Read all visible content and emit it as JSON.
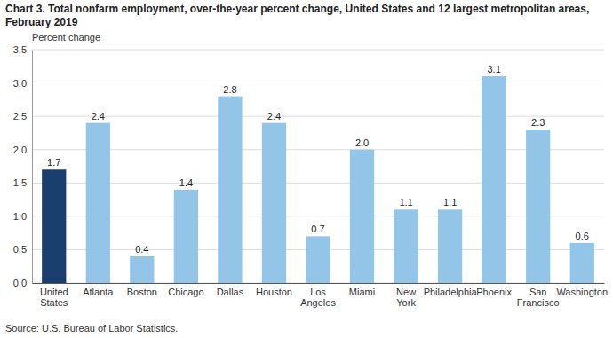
{
  "chart_data": {
    "type": "bar",
    "title": "Chart 3. Total nonfarm employment, over-the-year percent change, United States and 12 largest metropolitan areas,",
    "subtitle": "February 2019",
    "ylabel": "Percent change",
    "source": "Source: U.S. Bureau of Labor Statistics.",
    "categories": [
      "United\nStates",
      "Atlanta",
      "Boston",
      "Chicago",
      "Dallas",
      "Houston",
      "Los\nAngeles",
      "Miami",
      "New\nYork",
      "Philadelphia",
      "Phoenix",
      "San\nFrancisco",
      "Washington"
    ],
    "values": [
      1.7,
      2.4,
      0.4,
      1.4,
      2.8,
      2.4,
      0.7,
      2.0,
      1.1,
      1.1,
      3.1,
      2.3,
      0.6
    ],
    "value_labels": [
      "1.7",
      "2.4",
      "0.4",
      "1.4",
      "2.8",
      "2.4",
      "0.7",
      "2.0",
      "1.1",
      "1.1",
      "3.1",
      "2.3",
      "0.6"
    ],
    "colors": [
      "#1a3f6f",
      "#92c5e8",
      "#92c5e8",
      "#92c5e8",
      "#92c5e8",
      "#92c5e8",
      "#92c5e8",
      "#92c5e8",
      "#92c5e8",
      "#92c5e8",
      "#92c5e8",
      "#92c5e8",
      "#92c5e8"
    ],
    "ylim": [
      0,
      3.5
    ],
    "yticks": [
      {
        "value": 0,
        "label": "0.0"
      },
      0.5,
      {
        "value": 1,
        "label": "1.0"
      },
      1.5,
      {
        "value": 2,
        "label": "2.0"
      },
      2.5,
      {
        "value": 3,
        "label": "3.0"
      },
      3.5
    ],
    "grid": true,
    "data_labels": true
  }
}
